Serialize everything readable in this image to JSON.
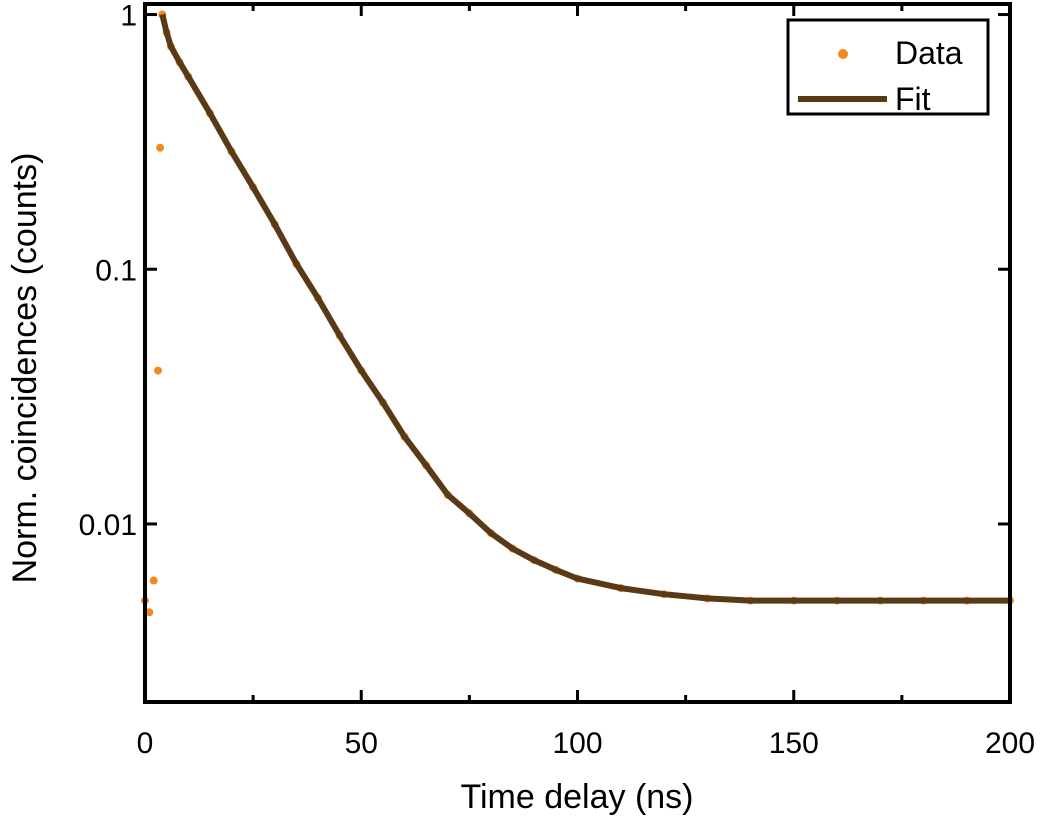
{
  "chart_data": {
    "type": "scatter",
    "title": "",
    "xlabel": "Time delay (ns)",
    "ylabel": "Norm. coincidences (counts)",
    "xlim": [
      0,
      200
    ],
    "ylim": [
      0.002,
      1.1
    ],
    "yscale": "log",
    "x_ticks": [
      0,
      50,
      100,
      150,
      200
    ],
    "x_tick_labels": [
      "0",
      "50",
      "100",
      "150",
      "200"
    ],
    "y_ticks": [
      1,
      0.1,
      0.01
    ],
    "y_tick_labels": [
      "1",
      "0.1",
      "0.01"
    ],
    "grid": false,
    "legend_position": "top-right",
    "colors": {
      "data": "#f28a22",
      "fit": "#5a3a16"
    },
    "series": [
      {
        "name": "Data",
        "kind": "scatter",
        "x": [
          0,
          1,
          2,
          3,
          3.5,
          4,
          5,
          6,
          8,
          10,
          15,
          20,
          25,
          30,
          35,
          40,
          45,
          50,
          55,
          60,
          65,
          70,
          75,
          80,
          85,
          90,
          95,
          100,
          110,
          120,
          130,
          140,
          150,
          160,
          170,
          180,
          190,
          200
        ],
        "y": [
          0.005,
          0.0045,
          0.006,
          0.04,
          0.3,
          1.0,
          0.85,
          0.75,
          0.65,
          0.57,
          0.41,
          0.29,
          0.21,
          0.15,
          0.105,
          0.077,
          0.055,
          0.04,
          0.03,
          0.022,
          0.017,
          0.013,
          0.011,
          0.0092,
          0.008,
          0.0072,
          0.0066,
          0.0061,
          0.0056,
          0.0053,
          0.0051,
          0.005,
          0.005,
          0.005,
          0.005,
          0.005,
          0.005,
          0.005
        ]
      },
      {
        "name": "Fit",
        "kind": "line",
        "x": [
          4,
          5,
          6,
          8,
          10,
          15,
          20,
          25,
          30,
          35,
          40,
          45,
          50,
          55,
          60,
          65,
          70,
          75,
          80,
          85,
          90,
          95,
          100,
          110,
          120,
          130,
          140,
          150,
          160,
          170,
          180,
          190,
          200
        ],
        "y": [
          1.0,
          0.85,
          0.75,
          0.65,
          0.57,
          0.41,
          0.29,
          0.21,
          0.15,
          0.105,
          0.077,
          0.055,
          0.04,
          0.03,
          0.022,
          0.017,
          0.013,
          0.011,
          0.0092,
          0.008,
          0.0072,
          0.0066,
          0.0061,
          0.0056,
          0.0053,
          0.0051,
          0.005,
          0.005,
          0.005,
          0.005,
          0.005,
          0.005,
          0.005
        ]
      }
    ]
  }
}
